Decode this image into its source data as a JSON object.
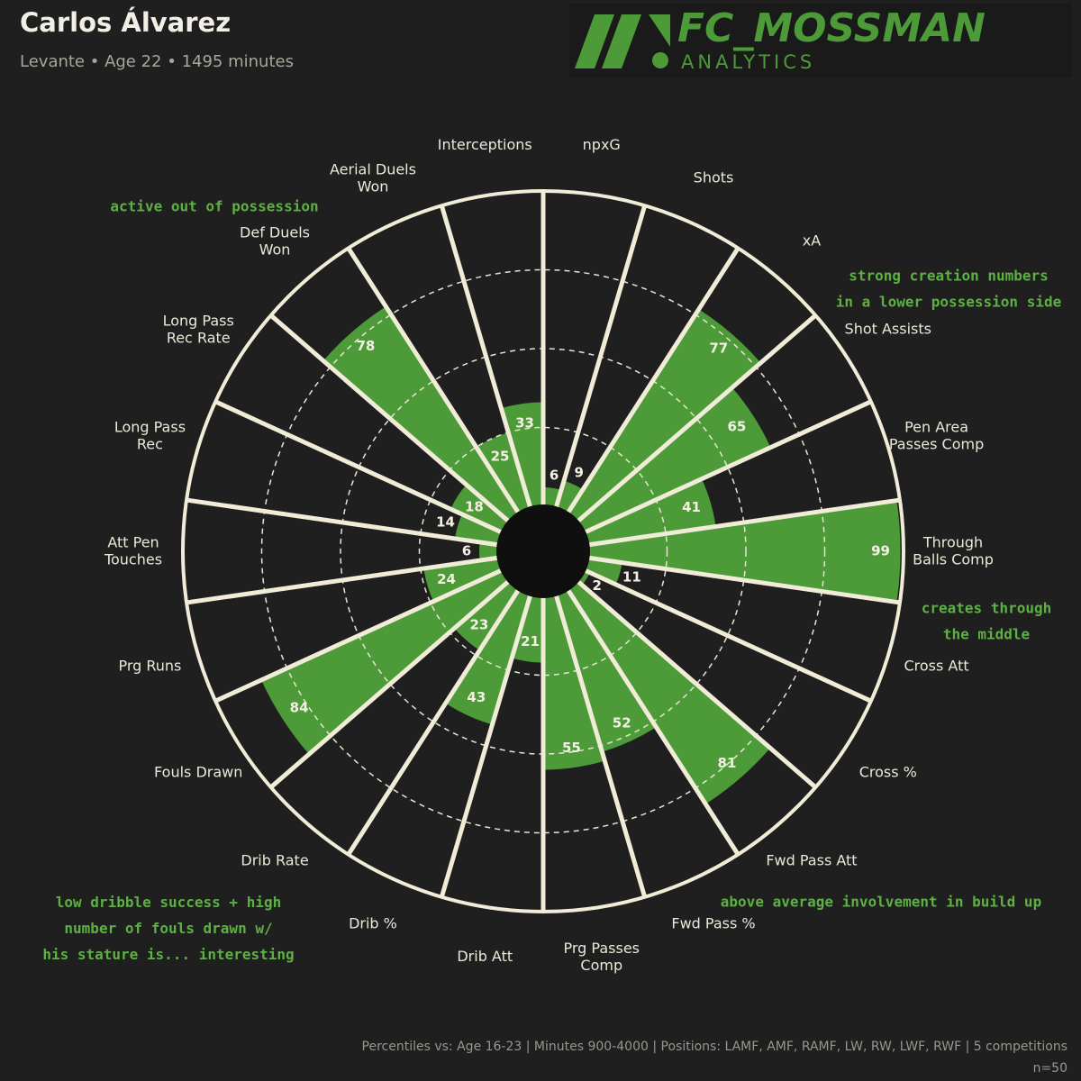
{
  "header": {
    "title": "Carlos Álvarez",
    "subtitle": "Levante • Age 22 • 1495 minutes",
    "logo_main": "FC_MOSSMAN",
    "logo_sub": "ANALYTICS"
  },
  "chart_data": {
    "type": "pizza",
    "categories": [
      "npxG",
      "Shots",
      "xA",
      "Shot Assists",
      "Pen Area\nPasses Comp",
      "Through\nBalls Comp",
      "Cross Att",
      "Cross %",
      "Fwd Pass Att",
      "Fwd Pass %",
      "Prg Passes\nComp",
      "Drib Att",
      "Drib %",
      "Drib Rate",
      "Fouls Drawn",
      "Prg Runs",
      "Att Pen\nTouches",
      "Long Pass\nRec",
      "Long Pass\nRec Rate",
      "Def Duels\nWon",
      "Aerial Duels\nWon",
      "Interceptions"
    ],
    "values": [
      6,
      9,
      77,
      65,
      41,
      99,
      11,
      2,
      81,
      52,
      55,
      21,
      43,
      23,
      84,
      24,
      6,
      14,
      18,
      78,
      25,
      33
    ],
    "color": "#4c9a38",
    "rlim": [
      0,
      100
    ],
    "rticks": [
      25,
      50,
      75
    ],
    "grid": true,
    "annotations": [
      "active out of possession",
      "strong creation numbers\nin a lower possession side",
      "creates through\nthe middle",
      "low dribble success + high\nnumber of fouls drawn w/\nhis stature is... interesting",
      "above average involvement in build up"
    ]
  },
  "footer": {
    "note": "Percentiles vs: Age 16-23 | Minutes 900-4000 | Positions: LAMF, AMF, RAMF, LW, RW, LWF, RWF | 5 competitions",
    "sample": "n=50"
  }
}
